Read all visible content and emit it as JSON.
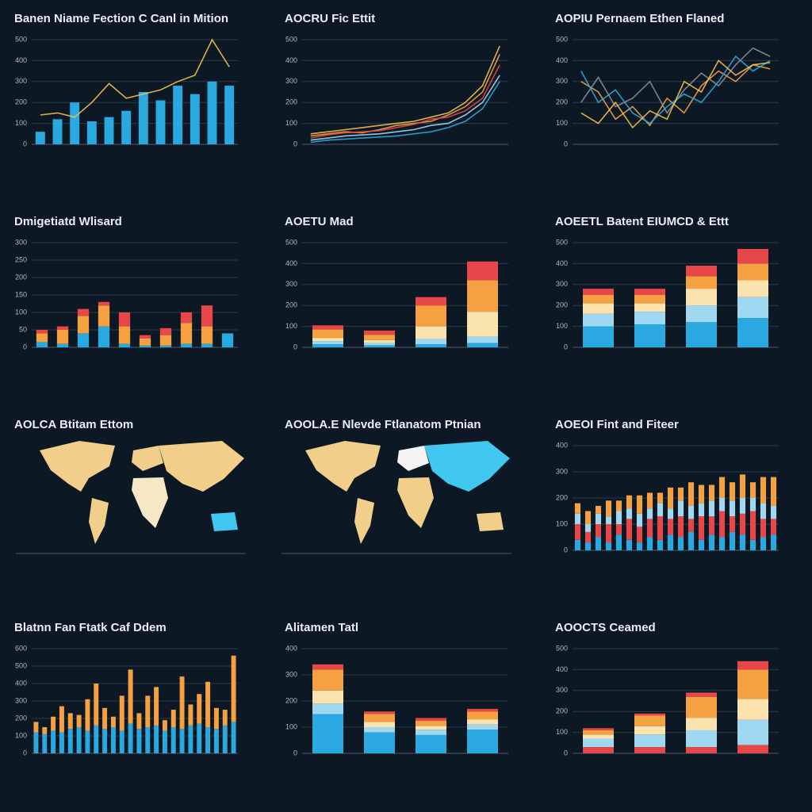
{
  "chart_data": [
    {
      "type": "bar",
      "title": "Banen Niame Fection C Canl in Mition",
      "categories": [
        null,
        null,
        null,
        null,
        null,
        null,
        null,
        null,
        null,
        null,
        null,
        null
      ],
      "ylim": [
        0,
        500
      ],
      "yticks": [
        0,
        100,
        200,
        300,
        400,
        500
      ],
      "grid": true,
      "series": [
        {
          "kind": "bar",
          "color": "#2aa8e0",
          "values": [
            60,
            120,
            200,
            110,
            130,
            160,
            250,
            210,
            280,
            240,
            300,
            280
          ]
        },
        {
          "kind": "line",
          "color": "#f2c14e",
          "values": [
            140,
            150,
            130,
            200,
            290,
            220,
            240,
            260,
            300,
            330,
            500,
            370
          ]
        }
      ]
    },
    {
      "type": "line",
      "title": "AOCRU Fic Ettit",
      "categories": [
        null,
        null,
        null,
        null,
        null,
        null,
        null,
        null,
        null,
        null,
        null,
        null
      ],
      "ylim": [
        0,
        500
      ],
      "yticks": [
        0,
        100,
        200,
        300,
        400,
        500
      ],
      "grid": true,
      "series": [
        {
          "color": "#f5a142",
          "values": [
            40,
            50,
            60,
            55,
            70,
            90,
            100,
            110,
            140,
            180,
            250,
            430
          ]
        },
        {
          "color": "#e8474a",
          "values": [
            30,
            45,
            55,
            60,
            65,
            80,
            95,
            120,
            130,
            160,
            220,
            380
          ]
        },
        {
          "color": "#9fd8f0",
          "values": [
            20,
            30,
            40,
            45,
            50,
            60,
            70,
            90,
            100,
            140,
            200,
            330
          ]
        },
        {
          "color": "#f2c14e",
          "values": [
            50,
            60,
            70,
            80,
            90,
            100,
            110,
            130,
            150,
            200,
            280,
            470
          ]
        },
        {
          "color": "#2aa8e0",
          "values": [
            10,
            20,
            25,
            30,
            35,
            40,
            50,
            60,
            80,
            110,
            170,
            300
          ]
        }
      ]
    },
    {
      "type": "line",
      "title": "AOPIU Pernaem Ethen Flaned",
      "categories": [
        null,
        null,
        null,
        null,
        null,
        null,
        null,
        null,
        null,
        null,
        null,
        null
      ],
      "ylim": [
        0,
        500
      ],
      "yticks": [
        0,
        100,
        200,
        300,
        400,
        500
      ],
      "grid": true,
      "series": [
        {
          "color": "#f5a142",
          "values": [
            300,
            250,
            120,
            180,
            90,
            220,
            150,
            280,
            350,
            300,
            380,
            360
          ]
        },
        {
          "color": "#2aa8e0",
          "values": [
            350,
            200,
            260,
            150,
            100,
            180,
            240,
            200,
            300,
            420,
            350,
            400
          ]
        },
        {
          "color": "#8a8f99",
          "values": [
            200,
            320,
            180,
            220,
            300,
            150,
            260,
            340,
            280,
            380,
            460,
            420
          ]
        },
        {
          "color": "#f2c14e",
          "values": [
            150,
            100,
            200,
            80,
            160,
            120,
            300,
            250,
            400,
            330,
            380,
            390
          ]
        }
      ]
    },
    {
      "type": "bar",
      "title": "Dmigetiatd Wlisard",
      "categories": [
        null,
        null,
        null,
        null,
        null,
        null,
        null,
        null,
        null,
        null
      ],
      "ylim": [
        0,
        300
      ],
      "yticks": [
        0,
        50,
        100,
        150,
        200,
        250,
        300
      ],
      "grid": true,
      "series": [
        {
          "color": "#2aa8e0",
          "values": [
            15,
            10,
            40,
            60,
            10,
            5,
            5,
            10,
            10,
            40
          ]
        },
        {
          "color": "#f5a142",
          "values": [
            25,
            40,
            50,
            60,
            50,
            20,
            30,
            60,
            50,
            0
          ]
        },
        {
          "color": "#e8474a",
          "values": [
            10,
            10,
            20,
            10,
            40,
            10,
            20,
            30,
            60,
            0
          ]
        }
      ]
    },
    {
      "type": "bar",
      "title": "AOETU Mad",
      "categories": [
        null,
        null,
        null,
        null
      ],
      "ylim": [
        0,
        500
      ],
      "yticks": [
        0,
        100,
        200,
        300,
        400,
        500
      ],
      "grid": true,
      "series": [
        {
          "color": "#2aa8e0",
          "values": [
            15,
            10,
            15,
            20
          ]
        },
        {
          "color": "#9fd8f0",
          "values": [
            15,
            10,
            25,
            30
          ]
        },
        {
          "color": "#fbe3b0",
          "values": [
            15,
            15,
            60,
            120
          ]
        },
        {
          "color": "#f5a142",
          "values": [
            40,
            25,
            100,
            150
          ]
        },
        {
          "color": "#e8474a",
          "values": [
            20,
            20,
            40,
            90
          ]
        }
      ]
    },
    {
      "type": "bar",
      "title": "AOEETL Batent EIUMCD & Ettt",
      "categories": [
        null,
        null,
        null,
        null
      ],
      "ylim": [
        0,
        500
      ],
      "yticks": [
        0,
        100,
        200,
        300,
        400,
        500
      ],
      "grid": true,
      "series": [
        {
          "color": "#2aa8e0",
          "values": [
            100,
            110,
            120,
            140
          ]
        },
        {
          "color": "#9fd8f0",
          "values": [
            60,
            60,
            80,
            100
          ]
        },
        {
          "color": "#fbe3b0",
          "values": [
            50,
            40,
            80,
            80
          ]
        },
        {
          "color": "#f5a142",
          "values": [
            40,
            40,
            60,
            80
          ]
        },
        {
          "color": "#e8474a",
          "values": [
            30,
            30,
            50,
            70
          ]
        }
      ]
    },
    {
      "type": "map",
      "title": "AOLCA Btitam Ettom"
    },
    {
      "type": "map",
      "title": "AOOLA.E Nlevde Ftlanatom Ptnian"
    },
    {
      "type": "bar",
      "title": "AOEOI Fint and Fiteer",
      "categories": [
        null,
        null,
        null,
        null,
        null,
        null,
        null,
        null,
        null,
        null,
        null,
        null,
        null,
        null,
        null,
        null,
        null,
        null,
        null,
        null
      ],
      "ylim": [
        0,
        400
      ],
      "yticks": [
        0,
        100,
        200,
        300,
        400
      ],
      "grid": true,
      "series": [
        {
          "color": "#2aa8e0",
          "values": [
            40,
            30,
            50,
            30,
            60,
            40,
            30,
            50,
            40,
            60,
            50,
            70,
            40,
            60,
            50,
            70,
            60,
            40,
            50,
            60
          ]
        },
        {
          "color": "#e8474a",
          "values": [
            60,
            40,
            50,
            70,
            40,
            80,
            60,
            70,
            90,
            60,
            80,
            50,
            90,
            70,
            100,
            60,
            80,
            110,
            70,
            60
          ]
        },
        {
          "color": "#9fd8f0",
          "values": [
            40,
            30,
            40,
            30,
            50,
            40,
            50,
            40,
            50,
            40,
            60,
            50,
            50,
            60,
            50,
            60,
            60,
            50,
            60,
            50
          ]
        },
        {
          "color": "#f5a142",
          "values": [
            40,
            50,
            30,
            60,
            40,
            50,
            70,
            60,
            40,
            80,
            50,
            90,
            70,
            60,
            80,
            70,
            90,
            60,
            100,
            110
          ]
        }
      ]
    },
    {
      "type": "bar",
      "title": "Blatnn Fan Ftatk Caf Ddem",
      "categories": [
        null,
        null,
        null,
        null,
        null,
        null,
        null,
        null,
        null,
        null,
        null,
        null,
        null,
        null,
        null,
        null,
        null,
        null,
        null,
        null,
        null,
        null,
        null,
        null
      ],
      "ylim": [
        0,
        600
      ],
      "yticks": [
        0,
        100,
        200,
        300,
        400,
        500,
        600
      ],
      "grid": true,
      "series": [
        {
          "color": "#2aa8e0",
          "values": [
            120,
            110,
            130,
            120,
            140,
            150,
            130,
            160,
            140,
            150,
            130,
            170,
            140,
            150,
            160,
            130,
            150,
            140,
            160,
            170,
            150,
            140,
            160,
            180
          ]
        },
        {
          "color": "#f5a142",
          "values": [
            60,
            40,
            80,
            150,
            90,
            70,
            180,
            240,
            120,
            60,
            200,
            310,
            90,
            180,
            220,
            60,
            100,
            300,
            120,
            170,
            260,
            120,
            90,
            380
          ]
        }
      ]
    },
    {
      "type": "bar",
      "title": "Alitamen Tatl",
      "categories": [
        null,
        null,
        null,
        null
      ],
      "ylim": [
        0,
        400
      ],
      "yticks": [
        0,
        100,
        200,
        300,
        400
      ],
      "grid": true,
      "series": [
        {
          "color": "#2aa8e0",
          "values": [
            150,
            80,
            70,
            90
          ]
        },
        {
          "color": "#9fd8f0",
          "values": [
            40,
            20,
            20,
            20
          ]
        },
        {
          "color": "#fbe3b0",
          "values": [
            50,
            20,
            15,
            20
          ]
        },
        {
          "color": "#f5a142",
          "values": [
            80,
            30,
            20,
            30
          ]
        },
        {
          "color": "#e8474a",
          "values": [
            20,
            10,
            10,
            10
          ]
        }
      ]
    },
    {
      "type": "bar",
      "title": "AOOCTS Ceamed",
      "categories": [
        null,
        null,
        null,
        null
      ],
      "ylim": [
        0,
        500
      ],
      "yticks": [
        0,
        100,
        200,
        300,
        400,
        500
      ],
      "grid": true,
      "series": [
        {
          "color": "#e8474a",
          "values": [
            30,
            30,
            30,
            40
          ]
        },
        {
          "color": "#9fd8f0",
          "values": [
            40,
            60,
            80,
            120
          ]
        },
        {
          "color": "#fbe3b0",
          "values": [
            20,
            40,
            60,
            100
          ]
        },
        {
          "color": "#f5a142",
          "values": [
            20,
            50,
            100,
            140
          ]
        },
        {
          "color": "#e8474a",
          "values": [
            10,
            10,
            20,
            40
          ]
        }
      ]
    }
  ]
}
